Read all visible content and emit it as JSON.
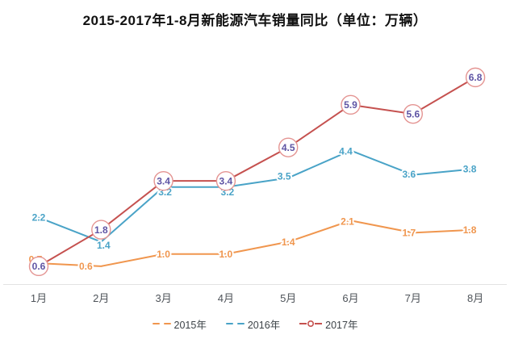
{
  "title": "2015-2017年1-8月新能源汽车销量同比（单位：万辆）",
  "chart_data": {
    "type": "line",
    "title": "2015-2017年1-8月新能源汽车销量同比（单位：万辆）",
    "categories": [
      "1月",
      "2月",
      "3月",
      "4月",
      "5月",
      "6月",
      "7月",
      "8月"
    ],
    "series": [
      {
        "name": "2015年",
        "color": "#F0964E",
        "line_style": "solid",
        "marker": "none",
        "values": [
          0.7,
          0.6,
          1.0,
          1.0,
          1.4,
          2.1,
          1.7,
          1.8
        ],
        "label_offsets": [
          [
            -4,
            -5
          ],
          [
            -19,
            0
          ],
          [
            0,
            0
          ],
          [
            0,
            0
          ],
          [
            0,
            0
          ],
          [
            -4,
            1
          ],
          [
            -5,
            0
          ],
          [
            -7,
            0
          ]
        ]
      },
      {
        "name": "2016年",
        "color": "#49A3C7",
        "line_style": "solid",
        "marker": "none",
        "values": [
          2.2,
          1.4,
          3.2,
          3.2,
          3.5,
          4.4,
          3.6,
          3.8
        ],
        "label_offsets": [
          [
            0,
            0
          ],
          [
            3,
            4
          ],
          [
            2,
            6
          ],
          [
            2,
            6
          ],
          [
            -5,
            -2
          ],
          [
            -6,
            1
          ],
          [
            -5,
            -1
          ],
          [
            -7,
            0
          ]
        ]
      },
      {
        "name": "2017年",
        "color": "#C5514F",
        "line_style": "solid",
        "marker": "circle",
        "marker_fill": "#FFFFFF",
        "marker_stroke": "#E49492",
        "label_color": "#5E54A4",
        "values": [
          0.6,
          1.8,
          3.4,
          3.4,
          4.5,
          5.9,
          5.6,
          6.8
        ],
        "label_offsets": [
          [
            0,
            0
          ],
          [
            0,
            0
          ],
          [
            0,
            0
          ],
          [
            0,
            0
          ],
          [
            0,
            0
          ],
          [
            0,
            0
          ],
          [
            0,
            0
          ],
          [
            0,
            0
          ]
        ]
      }
    ],
    "xlabel": "",
    "ylabel": "",
    "ylim": [
      0,
      7.2
    ],
    "grid": false,
    "y_axis_visible": false,
    "legend_position": "bottom",
    "style": {
      "axis_line_color": "#E3E3E3",
      "tick_label_color": "#4F545A",
      "title_color": "#111111",
      "legend_text_color": "#3D4348",
      "label_halo_color": "#FFFFFF"
    }
  }
}
